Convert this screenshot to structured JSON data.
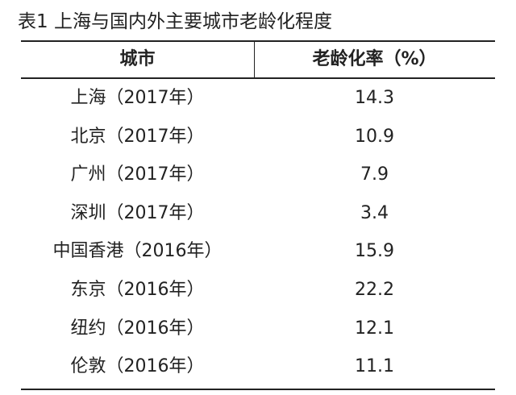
{
  "title": "表1 上海与国内外主要城市老龄化程度",
  "table": {
    "header": [
      "城市",
      "老龄化率（%）"
    ],
    "rows": [
      [
        "上海（2017年）",
        "14.3"
      ],
      [
        "北京（2017年）",
        "10.9"
      ],
      [
        "广州（2017年）",
        "7.9"
      ],
      [
        "深圳（2017年）",
        "3.4"
      ],
      [
        "中国香港（2016年）",
        "15.9"
      ],
      [
        "东京（2016年）",
        "22.2"
      ],
      [
        "纽约（2016年）",
        "12.1"
      ],
      [
        "伦敦（2016年）",
        "11.1"
      ]
    ]
  }
}
